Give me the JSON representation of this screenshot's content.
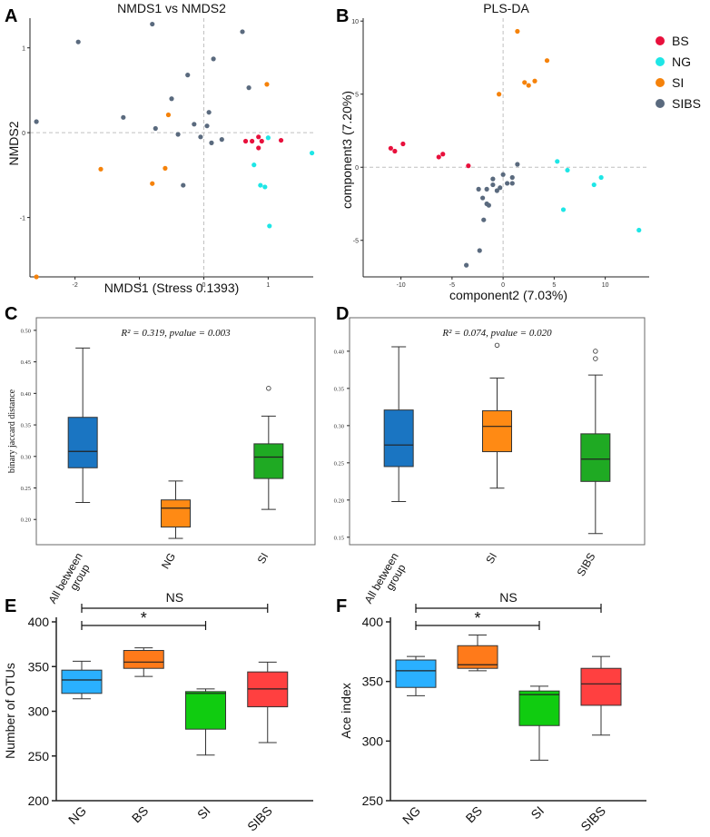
{
  "colors": {
    "BS": "#e8103c",
    "NG": "#1ee6e6",
    "SI": "#f5820a",
    "SIBS": "#5a6a7e",
    "gridDash": "#c0c0c0",
    "axis": "#222222",
    "frame": "#6a6a6a"
  },
  "legend": {
    "items": [
      {
        "label": "BS",
        "color": "#e8103c"
      },
      {
        "label": "NG",
        "color": "#1ee6e6"
      },
      {
        "label": "SI",
        "color": "#f5820a"
      },
      {
        "label": "SIBS",
        "color": "#5a6a7e"
      }
    ]
  },
  "chart_data": [
    {
      "panel": "A",
      "type": "scatter",
      "title": "NMDS1 vs NMDS2",
      "xlabel": "NMDS1 (Stress 0.1393)",
      "ylabel": "NMDS2",
      "xlim": [
        -2.7,
        1.7
      ],
      "ylim": [
        -1.7,
        1.35
      ],
      "xticks": [
        -2,
        -1,
        0,
        1
      ],
      "yticks": [
        -1,
        0,
        1
      ],
      "refx": 0,
      "refy": 0,
      "series": [
        {
          "name": "SIBS",
          "points": [
            [
              -2.6,
              0.13
            ],
            [
              -1.95,
              1.07
            ],
            [
              -1.25,
              0.18
            ],
            [
              -0.8,
              1.28
            ],
            [
              -0.75,
              0.05
            ],
            [
              -0.5,
              0.4
            ],
            [
              -0.4,
              -0.02
            ],
            [
              -0.32,
              -0.62
            ],
            [
              -0.25,
              0.68
            ],
            [
              -0.15,
              0.1
            ],
            [
              -0.05,
              -0.05
            ],
            [
              0.05,
              0.08
            ],
            [
              0.08,
              0.24
            ],
            [
              0.15,
              0.87
            ],
            [
              0.12,
              -0.12
            ],
            [
              0.28,
              -0.08
            ],
            [
              0.6,
              1.19
            ],
            [
              0.7,
              0.53
            ]
          ]
        },
        {
          "name": "SI",
          "points": [
            [
              -2.6,
              -1.7
            ],
            [
              -1.6,
              -0.43
            ],
            [
              -0.8,
              -0.6
            ],
            [
              -0.6,
              -0.42
            ],
            [
              -0.55,
              0.21
            ],
            [
              0.98,
              0.57
            ]
          ]
        },
        {
          "name": "BS",
          "points": [
            [
              0.65,
              -0.1
            ],
            [
              0.75,
              -0.1
            ],
            [
              0.85,
              -0.05
            ],
            [
              0.9,
              -0.1
            ],
            [
              0.85,
              -0.18
            ],
            [
              1.2,
              -0.09
            ]
          ]
        },
        {
          "name": "NG",
          "points": [
            [
              1.0,
              -0.06
            ],
            [
              0.78,
              -0.38
            ],
            [
              0.88,
              -0.62
            ],
            [
              0.95,
              -0.64
            ],
            [
              1.02,
              -1.1
            ],
            [
              1.68,
              -0.24
            ]
          ]
        }
      ]
    },
    {
      "panel": "B",
      "type": "scatter",
      "title": "PLS-DA",
      "xlabel": "component2 (7.03%)",
      "ylabel": "component3 (7.20%)",
      "xlim": [
        -13.7,
        14.3
      ],
      "ylim": [
        -7.5,
        10.2
      ],
      "xticks": [
        -10,
        -5,
        0,
        5,
        10
      ],
      "yticks": [
        -5,
        0,
        5,
        10
      ],
      "refx": 0,
      "refy": 0,
      "series": [
        {
          "name": "BS",
          "points": [
            [
              -11,
              1.3
            ],
            [
              -10.6,
              1.1
            ],
            [
              -9.8,
              1.6
            ],
            [
              -6.3,
              0.7
            ],
            [
              -5.9,
              0.9
            ],
            [
              -3.4,
              0.1
            ]
          ]
        },
        {
          "name": "SI",
          "points": [
            [
              1.4,
              9.3
            ],
            [
              -0.4,
              5
            ],
            [
              2.1,
              5.8
            ],
            [
              2.5,
              5.6
            ],
            [
              3.1,
              5.9
            ],
            [
              4.3,
              7.3
            ]
          ]
        },
        {
          "name": "NG",
          "points": [
            [
              5.3,
              0.4
            ],
            [
              6.3,
              -0.2
            ],
            [
              5.9,
              -2.9
            ],
            [
              8.9,
              -1.2
            ],
            [
              9.6,
              -0.7
            ],
            [
              13.3,
              -4.3
            ]
          ]
        },
        {
          "name": "SIBS",
          "points": [
            [
              1.4,
              0.2
            ],
            [
              0.9,
              -0.7
            ],
            [
              0.4,
              -1.1
            ],
            [
              0,
              -0.5
            ],
            [
              -0.3,
              -1.4
            ],
            [
              -0.6,
              -1.6
            ],
            [
              -1,
              -1.2
            ],
            [
              -1,
              -0.8
            ],
            [
              -1.6,
              -1.5
            ],
            [
              -2.4,
              -1.5
            ],
            [
              -2,
              -2.1
            ],
            [
              -1.6,
              -2.5
            ],
            [
              -1.4,
              -2.6
            ],
            [
              -1.9,
              -3.6
            ],
            [
              -2.3,
              -5.7
            ],
            [
              -3.6,
              -6.7
            ],
            [
              0.9,
              -1.1
            ]
          ]
        }
      ]
    },
    {
      "panel": "C",
      "type": "box",
      "formula": "R² = 0.319, pvalue = 0.003",
      "ylabel": "binary jaccard distance",
      "ylim": [
        0.16,
        0.52
      ],
      "yticks": [
        "0.20",
        "0.25",
        "0.30",
        "0.35",
        "0.40",
        "0.45",
        "0.50"
      ],
      "categories": [
        "All between group",
        "NG",
        "SI"
      ],
      "boxes": [
        {
          "name": "All between group",
          "color": "#1a75c2",
          "whiskerLow": 0.227,
          "q1": 0.282,
          "median": 0.308,
          "q3": 0.362,
          "whiskerHigh": 0.472,
          "outliers": []
        },
        {
          "name": "NG",
          "color": "#ff8a14",
          "whiskerLow": 0.17,
          "q1": 0.188,
          "median": 0.218,
          "q3": 0.231,
          "whiskerHigh": 0.261,
          "outliers": []
        },
        {
          "name": "SI",
          "color": "#1faa23",
          "whiskerLow": 0.216,
          "q1": 0.265,
          "median": 0.299,
          "q3": 0.32,
          "whiskerHigh": 0.364,
          "outliers": [
            0.408
          ]
        }
      ]
    },
    {
      "panel": "D",
      "type": "box",
      "formula": "R² = 0.074, pvalue = 0.020",
      "ylim": [
        0.14,
        0.445
      ],
      "yticks": [
        "0.15",
        "0.20",
        "0.25",
        "0.30",
        "0.35",
        "0.40"
      ],
      "categories": [
        "All between group",
        "SI",
        "SIBS"
      ],
      "boxes": [
        {
          "name": "All between group",
          "color": "#1a75c2",
          "whiskerLow": 0.198,
          "q1": 0.245,
          "median": 0.274,
          "q3": 0.321,
          "whiskerHigh": 0.406,
          "outliers": []
        },
        {
          "name": "SI",
          "color": "#ff8a14",
          "whiskerLow": 0.216,
          "q1": 0.265,
          "median": 0.299,
          "q3": 0.32,
          "whiskerHigh": 0.364,
          "outliers": [
            0.408
          ]
        },
        {
          "name": "SIBS",
          "color": "#1faa23",
          "whiskerLow": 0.155,
          "q1": 0.225,
          "median": 0.255,
          "q3": 0.289,
          "whiskerHigh": 0.368,
          "outliers": [
            0.39,
            0.4
          ]
        }
      ]
    },
    {
      "panel": "E",
      "type": "box",
      "ylabel": "Number of OTUs",
      "ylim": [
        200,
        400
      ],
      "yticks": [
        "200",
        "250",
        "300",
        "350",
        "400"
      ],
      "categories": [
        "NG",
        "BS",
        "SI",
        "SIBS"
      ],
      "boxes": [
        {
          "name": "NG",
          "color": "#2ab0ff",
          "whiskerLow": 314,
          "q1": 320,
          "median": 335,
          "q3": 346,
          "whiskerHigh": 356,
          "outliers": []
        },
        {
          "name": "BS",
          "color": "#ff7a1a",
          "whiskerLow": 339,
          "q1": 348,
          "median": 355,
          "q3": 368,
          "whiskerHigh": 371,
          "outliers": []
        },
        {
          "name": "SI",
          "color": "#10cc10",
          "whiskerLow": 251,
          "q1": 280,
          "median": 320,
          "q3": 322,
          "whiskerHigh": 325,
          "outliers": []
        },
        {
          "name": "SIBS",
          "color": "#ff4040",
          "whiskerLow": 265,
          "q1": 305,
          "median": 325,
          "q3": 344,
          "whiskerHigh": 355,
          "outliers": []
        }
      ],
      "brackets": [
        {
          "from": "NG",
          "to": "SIBS",
          "label": "NS",
          "level": "top"
        },
        {
          "from": "NG",
          "to": "SI",
          "label": "*",
          "level": "lower"
        }
      ]
    },
    {
      "panel": "F",
      "type": "box",
      "ylabel": "Ace index",
      "ylim": [
        250,
        400
      ],
      "yticks": [
        "250",
        "300",
        "350",
        "400"
      ],
      "categories": [
        "NG",
        "BS",
        "SI",
        "SIBS"
      ],
      "boxes": [
        {
          "name": "NG",
          "color": "#2ab0ff",
          "whiskerLow": 338,
          "q1": 345,
          "median": 359,
          "q3": 368,
          "whiskerHigh": 371,
          "outliers": []
        },
        {
          "name": "BS",
          "color": "#ff7a1a",
          "whiskerLow": 359,
          "q1": 361,
          "median": 364,
          "q3": 380,
          "whiskerHigh": 389,
          "outliers": []
        },
        {
          "name": "SI",
          "color": "#10cc10",
          "whiskerLow": 284,
          "q1": 313,
          "median": 339,
          "q3": 342,
          "whiskerHigh": 346,
          "outliers": []
        },
        {
          "name": "SIBS",
          "color": "#ff4040",
          "whiskerLow": 305,
          "q1": 330,
          "median": 348,
          "q3": 361,
          "whiskerHigh": 371,
          "outliers": []
        }
      ],
      "brackets": [
        {
          "from": "NG",
          "to": "SIBS",
          "label": "NS",
          "level": "top"
        },
        {
          "from": "NG",
          "to": "SI",
          "label": "*",
          "level": "lower"
        }
      ]
    }
  ]
}
